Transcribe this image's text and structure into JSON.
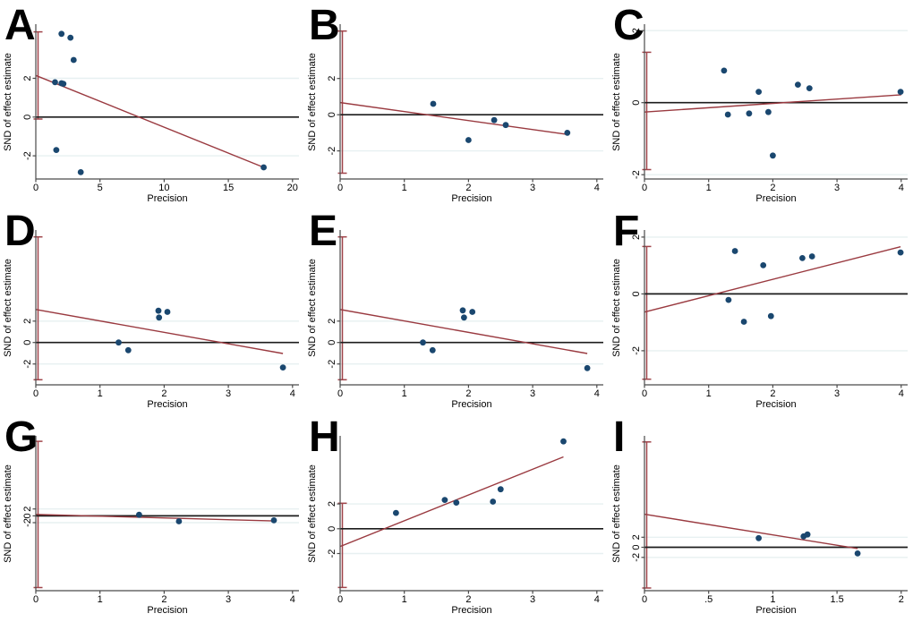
{
  "colors": {
    "point": "#1a476f",
    "regression": "#9a3a40",
    "ci": "#a0444a",
    "zero_line": "#1c1c1c",
    "grid": "#e7f0f1",
    "axis": "#4a4a4a",
    "text": "#000000",
    "background": "#ffffff"
  },
  "chart_data": {
    "type": "scatter",
    "layout": "3x3 grid of Egger regression plots, labels A-I, no legend, pale gridlines at y=2 and y=-2",
    "xlabel": "Precision",
    "ylabel": "SND of effect estimate",
    "yticks": [
      2,
      0,
      -2
    ],
    "grid_y": [
      2,
      -2
    ],
    "panels": [
      {
        "label": "A",
        "xlim": [
          0,
          20.5
        ],
        "xticks": [
          "0",
          "5",
          "10",
          "15",
          "20"
        ],
        "ylim": [
          -3.2,
          4.8
        ],
        "points": [
          [
            2.0,
            4.3
          ],
          [
            2.7,
            4.1
          ],
          [
            2.95,
            2.95
          ],
          [
            1.5,
            1.8
          ],
          [
            2.0,
            1.75
          ],
          [
            2.15,
            1.72
          ],
          [
            1.6,
            -1.7
          ],
          [
            3.5,
            -2.85
          ],
          [
            17.75,
            -2.6
          ]
        ],
        "regression": [
          [
            0,
            2.15
          ],
          [
            17.75,
            -2.6
          ]
        ],
        "intercept_ci": {
          "x": 0,
          "low": -0.1,
          "high": 4.4
        }
      },
      {
        "label": "B",
        "xlim": [
          0,
          4.1
        ],
        "xticks": [
          "0",
          "1",
          "2",
          "3",
          "4"
        ],
        "ylim": [
          -3.55,
          5.0
        ],
        "points": [
          [
            1.45,
            0.6
          ],
          [
            2.0,
            -1.4
          ],
          [
            2.4,
            -0.3
          ],
          [
            2.58,
            -0.57
          ],
          [
            3.54,
            -1.0
          ]
        ],
        "regression": [
          [
            0,
            0.67
          ],
          [
            3.54,
            -1.09
          ]
        ],
        "intercept_ci": {
          "x": 0,
          "low": -3.23,
          "high": 4.62
        }
      },
      {
        "label": "C",
        "xlim": [
          0,
          4.1
        ],
        "xticks": [
          "0",
          "1",
          "2",
          "3",
          "4"
        ],
        "ylim": [
          -2.12,
          2.18
        ],
        "points": [
          [
            1.24,
            0.89
          ],
          [
            1.3,
            -0.33
          ],
          [
            1.63,
            -0.3
          ],
          [
            1.78,
            0.3
          ],
          [
            1.93,
            -0.26
          ],
          [
            2.0,
            -1.47
          ],
          [
            2.39,
            0.5
          ],
          [
            2.57,
            0.4
          ],
          [
            3.99,
            0.3
          ]
        ],
        "regression": [
          [
            0,
            -0.26
          ],
          [
            4.0,
            0.22
          ]
        ],
        "intercept_ci": {
          "x": 0,
          "low": -1.86,
          "high": 1.4
        }
      },
      {
        "label": "D",
        "xlim": [
          0,
          4.1
        ],
        "xticks": [
          "0",
          "1",
          "2",
          "3",
          "4"
        ],
        "ylim": [
          -3.95,
          10.5
        ],
        "points": [
          [
            1.29,
            0.0
          ],
          [
            1.44,
            -0.72
          ],
          [
            1.91,
            2.97
          ],
          [
            1.92,
            2.33
          ],
          [
            2.05,
            2.86
          ],
          [
            3.85,
            -2.33
          ]
        ],
        "regression": [
          [
            0,
            3.08
          ],
          [
            3.85,
            -1.03
          ]
        ],
        "intercept_ci": {
          "x": 0,
          "low": -3.47,
          "high": 9.86
        }
      },
      {
        "label": "E",
        "xlim": [
          0,
          4.1
        ],
        "xticks": [
          "0",
          "1",
          "2",
          "3",
          "4"
        ],
        "ylim": [
          -3.95,
          10.5
        ],
        "points": [
          [
            1.29,
            0.0
          ],
          [
            1.44,
            -0.72
          ],
          [
            1.91,
            3.0
          ],
          [
            1.93,
            2.33
          ],
          [
            2.06,
            2.86
          ],
          [
            3.85,
            -2.39
          ]
        ],
        "regression": [
          [
            0,
            3.08
          ],
          [
            3.85,
            -1.03
          ]
        ],
        "intercept_ci": {
          "x": 0,
          "low": -3.47,
          "high": 9.86
        }
      },
      {
        "label": "F",
        "xlim": [
          0,
          4.1
        ],
        "xticks": [
          "0",
          "1",
          "2",
          "3",
          "4"
        ],
        "ylim": [
          -3.2,
          2.25
        ],
        "points": [
          [
            1.31,
            -0.21
          ],
          [
            1.41,
            1.51
          ],
          [
            1.55,
            -0.98
          ],
          [
            1.85,
            1.01
          ],
          [
            1.97,
            -0.78
          ],
          [
            2.46,
            1.26
          ],
          [
            2.61,
            1.32
          ],
          [
            3.99,
            1.46
          ]
        ],
        "regression": [
          [
            0,
            -0.64
          ],
          [
            3.99,
            1.66
          ]
        ],
        "intercept_ci": {
          "x": 0,
          "low": -3.0,
          "high": 1.67
        }
      },
      {
        "label": "G",
        "xlim": [
          0,
          4.1
        ],
        "xticks": [
          "0",
          "1",
          "2",
          "3",
          "4"
        ],
        "ylim": [
          -21.8,
          23.3
        ],
        "points": [
          [
            1.61,
            0.3
          ],
          [
            2.23,
            -1.6
          ],
          [
            3.71,
            -1.3
          ]
        ],
        "regression": [
          [
            0,
            0.4
          ],
          [
            3.71,
            -1.5
          ]
        ],
        "intercept_ci": {
          "x": 0,
          "low": -20.9,
          "high": 21.7
        }
      },
      {
        "label": "H",
        "xlim": [
          0,
          4.1
        ],
        "xticks": [
          "0",
          "1",
          "2",
          "3",
          "4"
        ],
        "ylim": [
          -5.0,
          7.5
        ],
        "points": [
          [
            0.87,
            1.28
          ],
          [
            1.63,
            2.33
          ],
          [
            1.81,
            2.11
          ],
          [
            2.38,
            2.19
          ],
          [
            2.5,
            3.19
          ],
          [
            3.48,
            7.05
          ]
        ],
        "regression": [
          [
            0,
            -1.43
          ],
          [
            3.48,
            5.8
          ]
        ],
        "intercept_ci": {
          "x": 0,
          "low": -4.74,
          "high": 2.06
        }
      },
      {
        "label": "I",
        "xlim": [
          0,
          2.05
        ],
        "xticks": [
          "0",
          ".5",
          "1",
          "1.5",
          "2"
        ],
        "ylim": [
          -8.6,
          22.1
        ],
        "points": [
          [
            0.89,
            1.82
          ],
          [
            1.24,
            2.18
          ],
          [
            1.27,
            2.55
          ],
          [
            1.66,
            -1.21
          ]
        ],
        "regression": [
          [
            0,
            6.55
          ],
          [
            1.66,
            -0.24
          ]
        ],
        "intercept_ci": {
          "x": 0,
          "low": -8.06,
          "high": 20.9
        }
      }
    ]
  }
}
